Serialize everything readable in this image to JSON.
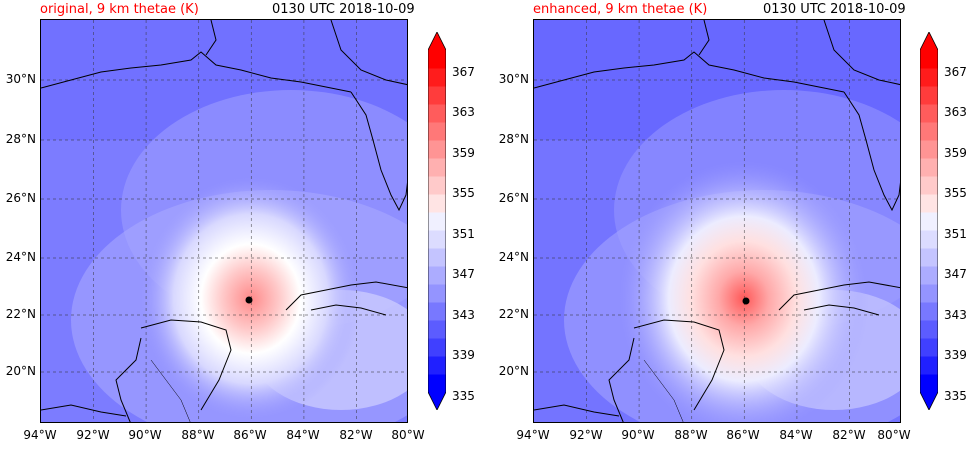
{
  "panels": [
    {
      "title_left": "original, 9 km thetae (K)",
      "title_right": "0130 UTC 2018-10-09"
    },
    {
      "title_left": "enhanced, 9 km thetae (K)",
      "title_right": "0130 UTC 2018-10-09"
    }
  ],
  "lat_labels": [
    "30°N",
    "28°N",
    "26°N",
    "24°N",
    "22°N",
    "20°N"
  ],
  "lon_labels": [
    "94°W",
    "92°W",
    "90°W",
    "88°W",
    "86°W",
    "84°W",
    "82°W",
    "80°W"
  ],
  "colorbar_labels": [
    "367",
    "363",
    "359",
    "355",
    "351",
    "347",
    "343",
    "339",
    "335"
  ],
  "colors": {
    "title_left": "#ff0000",
    "colorbar": [
      "#0000ff",
      "#2020ff",
      "#4040ff",
      "#5c5cff",
      "#7878ff",
      "#9494ff",
      "#acacff",
      "#c4c4ff",
      "#dcdcff",
      "#f0f0ff",
      "#ffe4e4",
      "#ffcaca",
      "#ffb0b0",
      "#ff9494",
      "#ff7878",
      "#ff5c5c",
      "#ff3c3c",
      "#ff1c1c",
      "#ff0000"
    ]
  }
}
